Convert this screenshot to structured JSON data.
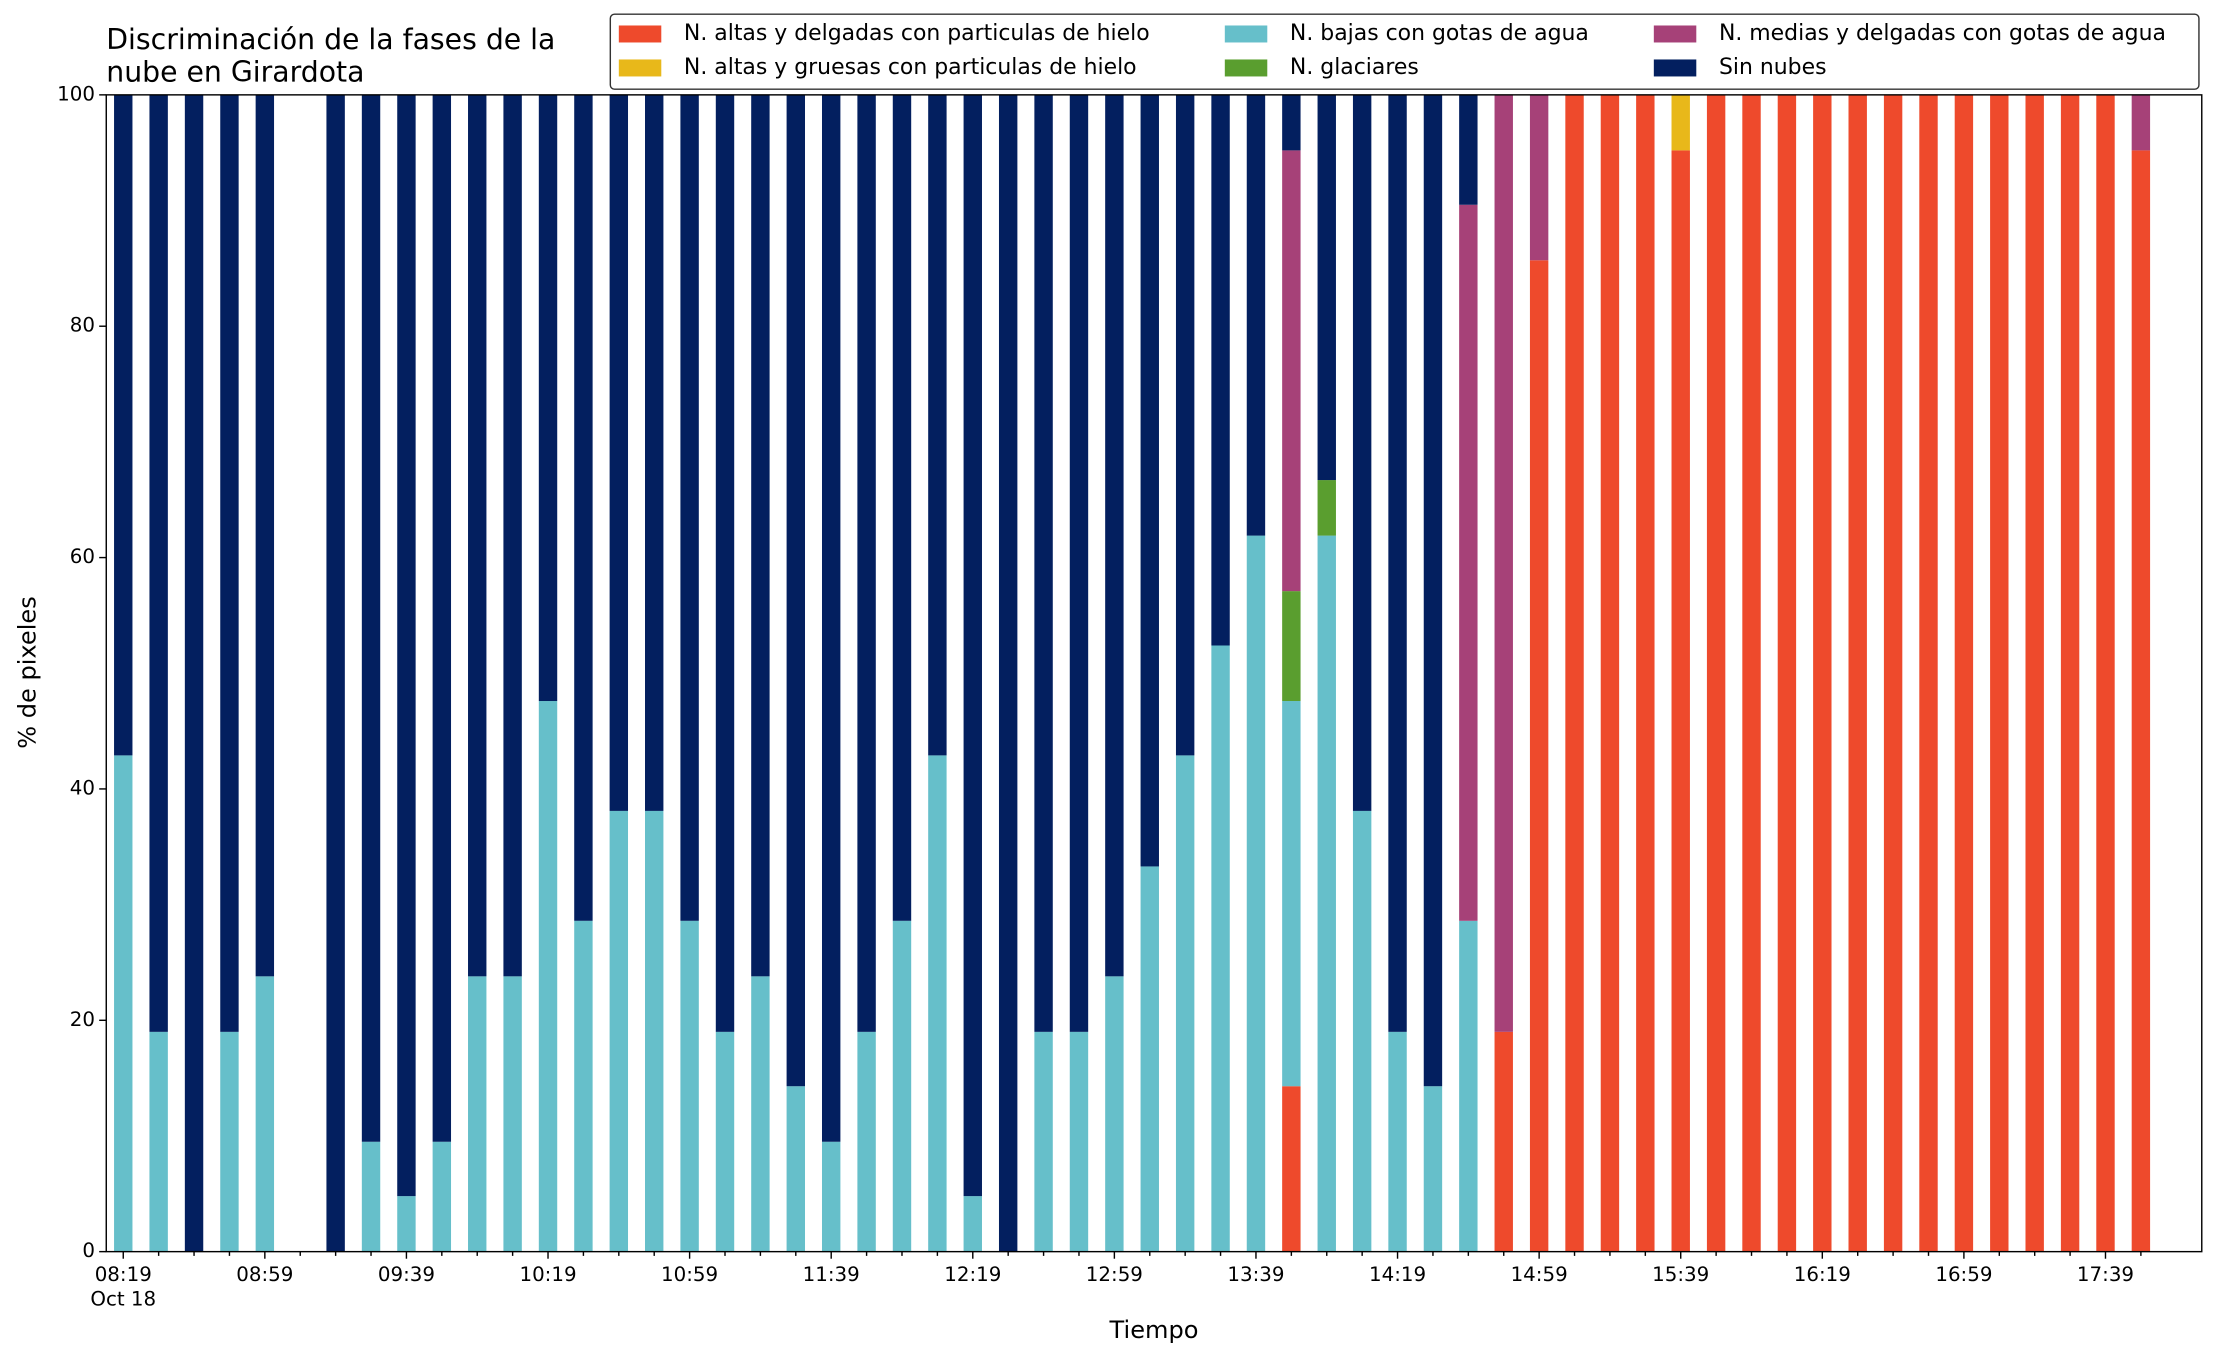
{
  "chart_data": {
    "type": "stacked_bar",
    "title": [
      "Discriminación de la fases de la",
      "nube en Girardota"
    ],
    "xlabel": "Tiempo",
    "ylabel": "% de pixeles",
    "date_label": "Oct 18",
    "categories": [
      "08:19",
      null,
      null,
      null,
      "08:59",
      null,
      null,
      null,
      "09:39",
      null,
      null,
      null,
      "10:19",
      null,
      null,
      null,
      "10:59",
      null,
      null,
      null,
      "11:39",
      null,
      null,
      null,
      "12:19",
      null,
      null,
      null,
      "12:59",
      null,
      null,
      null,
      "13:39",
      null,
      null,
      null,
      "14:19",
      null,
      null,
      null,
      "14:59",
      null,
      null,
      null,
      "15:39",
      null,
      null,
      null,
      "16:19",
      null,
      null,
      null,
      "16:59",
      null,
      null,
      null,
      "17:39",
      null
    ],
    "ylim": [
      0,
      100
    ],
    "yticks": [
      0,
      20,
      40,
      60,
      80,
      100
    ],
    "legend": "top-right",
    "series": [
      {
        "name": "N. altas y delgadas con particulas de hielo",
        "color": "#ee4a2c",
        "values": [
          0,
          0,
          0,
          0,
          0,
          null,
          0,
          0,
          0,
          0,
          0,
          0,
          0,
          0,
          0,
          0,
          0,
          0,
          0,
          0,
          0,
          0,
          0,
          0,
          0,
          0,
          0,
          0,
          0,
          0,
          0,
          0,
          0,
          14.3,
          0,
          0,
          0,
          0,
          0,
          19,
          85.7,
          100,
          100,
          100,
          95.2,
          100,
          100,
          100,
          100,
          100,
          100,
          100,
          100,
          100,
          100,
          100,
          100,
          95.2
        ]
      },
      {
        "name": "N. altas y gruesas con particulas de hielo",
        "color": "#e8b81a",
        "values": [
          0,
          0,
          0,
          0,
          0,
          null,
          0,
          0,
          0,
          0,
          0,
          0,
          0,
          0,
          0,
          0,
          0,
          0,
          0,
          0,
          0,
          0,
          0,
          0,
          0,
          0,
          0,
          0,
          0,
          0,
          0,
          0,
          0,
          0,
          0,
          0,
          0,
          0,
          0,
          0,
          0,
          0,
          0,
          0,
          4.8,
          0,
          0,
          0,
          0,
          0,
          0,
          0,
          0,
          0,
          0,
          0,
          0,
          0
        ]
      },
      {
        "name": "N. bajas con gotas de agua",
        "color": "#66bfca",
        "values": [
          42.9,
          19,
          0,
          19,
          23.8,
          null,
          0,
          9.5,
          4.8,
          9.5,
          23.8,
          23.8,
          47.6,
          28.6,
          38.1,
          38.1,
          28.6,
          19,
          23.8,
          14.3,
          9.5,
          19,
          28.6,
          42.9,
          4.8,
          0,
          19,
          19,
          23.8,
          33.3,
          42.9,
          52.4,
          61.9,
          33.3,
          61.9,
          38.1,
          19,
          14.3,
          28.6,
          0,
          0,
          0,
          0,
          0,
          0,
          0,
          0,
          0,
          0,
          0,
          0,
          0,
          0,
          0,
          0,
          0,
          0,
          0
        ]
      },
      {
        "name": "N. glaciares",
        "color": "#5a9e2f",
        "values": [
          0,
          0,
          0,
          0,
          0,
          null,
          0,
          0,
          0,
          0,
          0,
          0,
          0,
          0,
          0,
          0,
          0,
          0,
          0,
          0,
          0,
          0,
          0,
          0,
          0,
          0,
          0,
          0,
          0,
          0,
          0,
          0,
          0,
          9.5,
          4.8,
          0,
          0,
          0,
          0,
          0,
          0,
          0,
          0,
          0,
          0,
          0,
          0,
          0,
          0,
          0,
          0,
          0,
          0,
          0,
          0,
          0,
          0,
          0
        ]
      },
      {
        "name": "N. medias y delgadas con gotas de agua",
        "color": "#a64178",
        "values": [
          0,
          0,
          0,
          0,
          0,
          null,
          0,
          0,
          0,
          0,
          0,
          0,
          0,
          0,
          0,
          0,
          0,
          0,
          0,
          0,
          0,
          0,
          0,
          0,
          0,
          0,
          0,
          0,
          0,
          0,
          0,
          0,
          0,
          38.1,
          0,
          0,
          0,
          0,
          61.9,
          81,
          14.3,
          0,
          0,
          0,
          0,
          0,
          0,
          0,
          0,
          0,
          0,
          0,
          0,
          0,
          0,
          0,
          0,
          4.8
        ]
      },
      {
        "name": "Sin nubes",
        "color": "#031f5f",
        "values": [
          57.1,
          81,
          100,
          81,
          76.2,
          null,
          100,
          90.5,
          95.2,
          90.5,
          76.2,
          76.2,
          52.4,
          71.4,
          61.9,
          61.9,
          71.4,
          81,
          76.2,
          85.7,
          90.5,
          81,
          71.4,
          57.1,
          95.2,
          100,
          81,
          81,
          76.2,
          66.7,
          57.1,
          47.6,
          38.1,
          4.8,
          33.3,
          61.9,
          81,
          85.7,
          9.5,
          0,
          0,
          0,
          0,
          0,
          0,
          0,
          0,
          0,
          0,
          0,
          0,
          0,
          0,
          0,
          0,
          0,
          0,
          0
        ]
      }
    ]
  }
}
